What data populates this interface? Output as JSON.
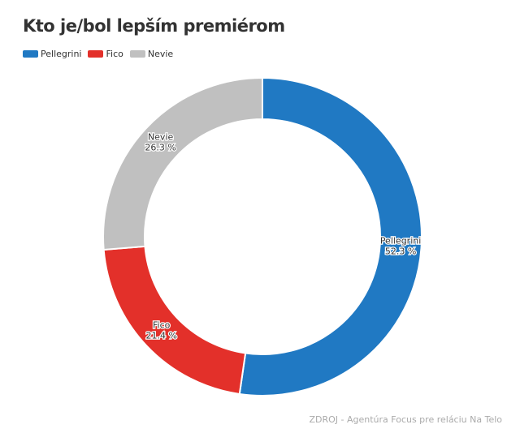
{
  "chart_data": {
    "type": "pie",
    "variant": "donut",
    "title": "Kto je/bol lepším premiérom",
    "slices": [
      {
        "label": "Pellegrini",
        "value": 52.3,
        "display": "52.3 %",
        "color": "#2079c3"
      },
      {
        "label": "Fico",
        "value": 21.4,
        "display": "21.4 %",
        "color": "#e3302a"
      },
      {
        "label": "Nevie",
        "value": 26.3,
        "display": "26.3 %",
        "color": "#c0c0c0"
      }
    ],
    "legend_position": "top-left",
    "source": "ZDROJ - Agentúra Focus pre reláciu Na Telo"
  }
}
